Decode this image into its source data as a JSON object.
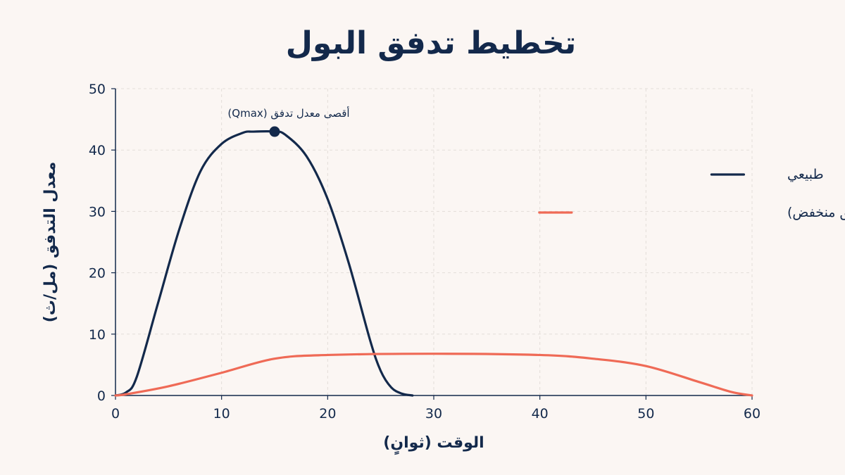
{
  "chart_data": {
    "type": "line",
    "title": "تخطيط تدفق البول",
    "xlabel": "الوقت (ثوانٍ)",
    "ylabel": "معدل التدفق (مل/ث)",
    "xlim": [
      0,
      60
    ],
    "ylim": [
      0,
      50
    ],
    "xticks": [
      0,
      10,
      20,
      30,
      40,
      50,
      60
    ],
    "yticks": [
      0,
      10,
      20,
      30,
      40,
      50
    ],
    "grid": true,
    "legend_position": "right",
    "series": [
      {
        "name": "طبيعي",
        "color": "#13294b",
        "x": [
          0,
          1,
          2,
          4,
          6,
          8,
          10,
          12,
          13,
          15,
          16,
          18,
          20,
          22,
          24,
          25,
          26,
          27,
          28
        ],
        "y": [
          0,
          0.5,
          3,
          15,
          27,
          36.5,
          41,
          42.8,
          43,
          43,
          42.5,
          39,
          32,
          21.5,
          9,
          4,
          1.3,
          0.3,
          0
        ]
      },
      {
        "name": "انسدادي (أقصى معدل تدفق منخفض)",
        "color": "#ef6a56",
        "x": [
          0,
          1,
          5,
          10,
          15,
          20,
          30,
          40,
          45,
          50,
          55,
          58,
          60
        ],
        "y": [
          0,
          0.2,
          1.5,
          3.7,
          6,
          6.6,
          6.8,
          6.6,
          6,
          4.8,
          2.2,
          0.6,
          0
        ]
      }
    ],
    "annotations": [
      {
        "text": "أقصى معدل تدفق (Qmax)",
        "x": 15,
        "y": 43
      }
    ]
  }
}
